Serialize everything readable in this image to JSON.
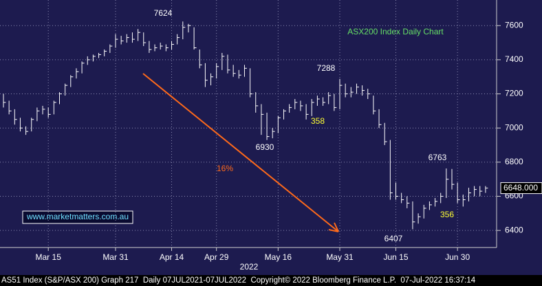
{
  "chart_data": {
    "type": "ohlc",
    "title": "ASX200 Index Daily Chart",
    "categories": [
      null,
      null,
      null,
      null,
      null,
      null,
      null,
      null,
      "Mar 15",
      null,
      null,
      null,
      null,
      null,
      null,
      null,
      null,
      null,
      null,
      null,
      "Mar 31",
      null,
      null,
      null,
      null,
      null,
      null,
      null,
      null,
      null,
      "Apr 14",
      null,
      null,
      null,
      null,
      null,
      null,
      null,
      "Apr 29",
      null,
      null,
      null,
      null,
      null,
      null,
      null,
      null,
      null,
      null,
      "May 16",
      null,
      null,
      null,
      null,
      null,
      null,
      null,
      null,
      null,
      null,
      "May 31",
      null,
      null,
      null,
      null,
      null,
      null,
      null,
      null,
      null,
      "Jun 15",
      null,
      null,
      null,
      null,
      null,
      null,
      null,
      null,
      null,
      null,
      "Jun 30",
      null,
      null,
      null,
      null,
      null
    ],
    "x_group_label": "2022",
    "high": [
      7200,
      7160,
      7110,
      7060,
      7010,
      7060,
      7120,
      7130,
      7120,
      7160,
      7210,
      7260,
      7310,
      7350,
      7390,
      7420,
      7430,
      7440,
      7460,
      7490,
      7550,
      7540,
      7550,
      7560,
      7580,
      7560,
      7510,
      7490,
      7500,
      7490,
      7510,
      7550,
      7624,
      7610,
      7590,
      7460,
      7380,
      7320,
      7380,
      7440,
      7430,
      7370,
      7340,
      7370,
      7350,
      7210,
      7140,
      7090,
      7000,
      7070,
      7110,
      7140,
      7170,
      7160,
      7140,
      7170,
      7190,
      7180,
      7210,
      7200,
      7288,
      7260,
      7240,
      7260,
      7250,
      7230,
      7190,
      7110,
      7030,
      6930,
      6680,
      6620,
      6600,
      6570,
      6500,
      6550,
      6570,
      6590,
      6620,
      6763,
      6760,
      6680,
      6610,
      6650,
      6660,
      6660,
      6660
    ],
    "low": [
      7120,
      7080,
      7020,
      6980,
      6960,
      6980,
      7040,
      7080,
      7060,
      7080,
      7140,
      7190,
      7240,
      7290,
      7320,
      7370,
      7390,
      7410,
      7420,
      7440,
      7470,
      7490,
      7500,
      7500,
      7510,
      7480,
      7440,
      7450,
      7460,
      7450,
      7460,
      7490,
      7520,
      7560,
      7460,
      7350,
      7240,
      7250,
      7290,
      7340,
      7320,
      7300,
      7290,
      7300,
      7180,
      7090,
      6960,
      6930,
      6940,
      6970,
      7050,
      7090,
      7110,
      7100,
      7050,
      7070,
      7130,
      7130,
      7140,
      7100,
      7110,
      7180,
      7180,
      7200,
      7190,
      7170,
      7080,
      7000,
      6900,
      6580,
      6580,
      6560,
      6530,
      6407,
      6440,
      6470,
      6520,
      6540,
      6560,
      6590,
      6640,
      6560,
      6540,
      6570,
      6600,
      6600,
      6620
    ],
    "close": [
      7150,
      7100,
      7050,
      7000,
      6980,
      7050,
      7100,
      7110,
      7080,
      7150,
      7200,
      7250,
      7300,
      7330,
      7380,
      7400,
      7420,
      7430,
      7450,
      7480,
      7520,
      7510,
      7530,
      7520,
      7560,
      7500,
      7460,
      7470,
      7480,
      7470,
      7490,
      7530,
      7590,
      7600,
      7470,
      7370,
      7280,
      7300,
      7360,
      7420,
      7340,
      7320,
      7310,
      7350,
      7200,
      7130,
      7080,
      6950,
      6980,
      7060,
      7100,
      7120,
      7150,
      7130,
      7080,
      7150,
      7170,
      7150,
      7190,
      7120,
      7250,
      7200,
      7210,
      7240,
      7220,
      7200,
      7100,
      7020,
      6920,
      6620,
      6600,
      6580,
      6560,
      6450,
      6480,
      6530,
      6550,
      6570,
      6600,
      6700,
      6670,
      6580,
      6580,
      6620,
      6640,
      6630,
      6648
    ],
    "color": "#ffffff",
    "ylim": [
      6300,
      7750
    ],
    "yticks": [
      6400,
      6600,
      6800,
      7000,
      7200,
      7400,
      7600
    ],
    "grid": true,
    "last_value": {
      "value": 6648,
      "label": "6648.000"
    },
    "annotations": [
      {
        "text": "7624",
        "color": "#ffffff"
      },
      {
        "text": "7288",
        "color": "#ffffff"
      },
      {
        "text": "6930",
        "color": "#ffffff"
      },
      {
        "text": "6407",
        "color": "#ffffff"
      },
      {
        "text": "6763",
        "color": "#ffffff"
      },
      {
        "text": "358",
        "color": "#ffff33"
      },
      {
        "text": "356",
        "color": "#ffff33"
      },
      {
        "text": "16%",
        "color": "#ff6a1a"
      }
    ],
    "title_color": "#66e066",
    "arrow_color": "#ff6a1a",
    "watermark": "www.marketmatters.com.au",
    "footer": "AS51 Index (S&P/ASX 200) Graph 217  Daily 07JUL2021-07JUL2022  Copyright© 2022 Bloomberg Finance L.P.  07-Jul-2022 16:37:14"
  }
}
